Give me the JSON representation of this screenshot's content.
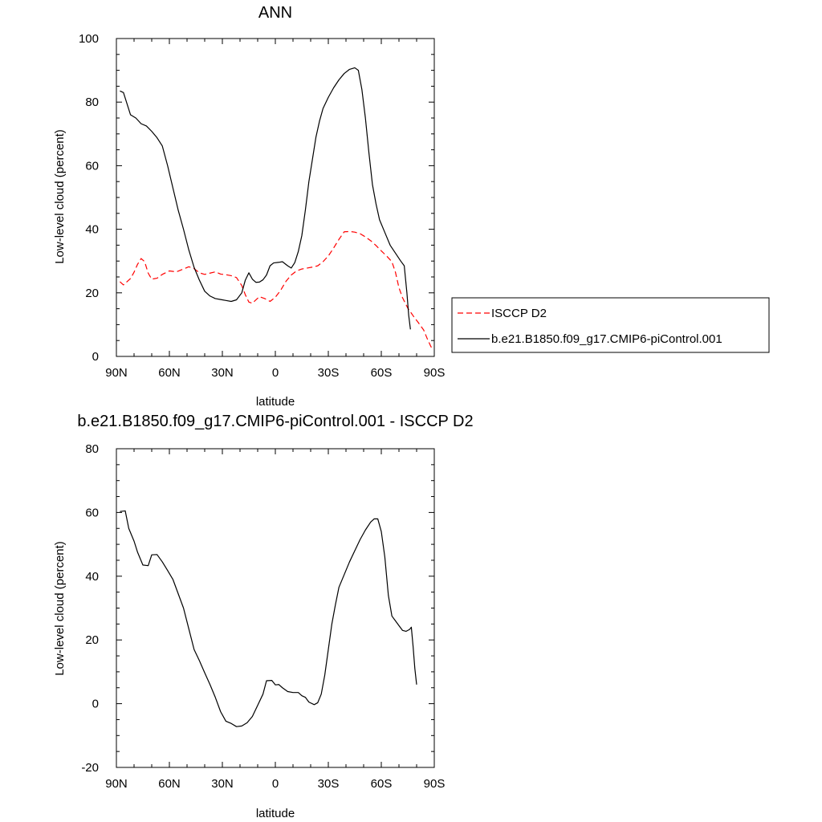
{
  "chart_data": [
    {
      "type": "line",
      "title": "ANN",
      "xlabel": "latitude",
      "ylabel": "Low-level cloud (percent)",
      "xlim": [
        90,
        -90
      ],
      "ylim": [
        0,
        100
      ],
      "xticks": [
        {
          "value": 90,
          "label": "90N"
        },
        {
          "value": 60,
          "label": "60N"
        },
        {
          "value": 30,
          "label": "30N"
        },
        {
          "value": 0,
          "label": "0"
        },
        {
          "value": -30,
          "label": "30S"
        },
        {
          "value": -60,
          "label": "60S"
        },
        {
          "value": -90,
          "label": "90S"
        }
      ],
      "yticks": [
        0,
        20,
        40,
        60,
        80,
        100
      ],
      "ytick_labels": [
        "0",
        "20",
        "40",
        "60",
        "80",
        "100"
      ],
      "grid": false,
      "legend": "right",
      "series": [
        {
          "name": "ISCCP D2",
          "color": "#ff0000",
          "dash": "dashed",
          "points": [
            [
              88,
              23.5
            ],
            [
              86,
              22.5
            ],
            [
              84,
              23.5
            ],
            [
              82,
              24.5
            ],
            [
              80,
              26.5
            ],
            [
              78,
              29
            ],
            [
              76,
              30.8
            ],
            [
              74,
              29.8
            ],
            [
              72,
              26.2
            ],
            [
              70,
              24.3
            ],
            [
              67,
              24.6
            ],
            [
              64,
              25.8
            ],
            [
              60,
              26.9
            ],
            [
              56,
              26.6
            ],
            [
              52,
              27.5
            ],
            [
              49,
              28.2
            ],
            [
              46,
              27.6
            ],
            [
              43,
              26.3
            ],
            [
              40,
              25.8
            ],
            [
              37,
              26.2
            ],
            [
              34,
              26.6
            ],
            [
              31,
              25.9
            ],
            [
              28,
              25.7
            ],
            [
              25,
              25.4
            ],
            [
              22,
              24.8
            ],
            [
              19,
              22.3
            ],
            [
              17,
              19.4
            ],
            [
              15,
              17.1
            ],
            [
              13,
              16.7
            ],
            [
              11,
              17.8
            ],
            [
              9,
              18.8
            ],
            [
              6,
              18.2
            ],
            [
              3,
              17.3
            ],
            [
              0,
              18.6
            ],
            [
              -3,
              20.8
            ],
            [
              -6,
              23.6
            ],
            [
              -9,
              25.6
            ],
            [
              -12,
              26.9
            ],
            [
              -15,
              27.5
            ],
            [
              -18,
              27.8
            ],
            [
              -21,
              28.1
            ],
            [
              -24,
              28.5
            ],
            [
              -27,
              29.8
            ],
            [
              -30,
              31.6
            ],
            [
              -33,
              34.1
            ],
            [
              -36,
              36.8
            ],
            [
              -39,
              39.2
            ],
            [
              -42,
              39.3
            ],
            [
              -45,
              39.1
            ],
            [
              -48,
              38.6
            ],
            [
              -51,
              37.6
            ],
            [
              -54,
              36.4
            ],
            [
              -57,
              34.9
            ],
            [
              -60,
              33.2
            ],
            [
              -63,
              31.6
            ],
            [
              -66,
              29.8
            ],
            [
              -68,
              26.5
            ],
            [
              -70,
              21.6
            ],
            [
              -72,
              18.5
            ],
            [
              -75,
              15.2
            ],
            [
              -78,
              12.8
            ],
            [
              -81,
              10.6
            ],
            [
              -84,
              8.3
            ],
            [
              -86,
              5.6
            ],
            [
              -88,
              3.2
            ],
            [
              -89,
              2.2
            ]
          ]
        },
        {
          "name": "b.e21.B1850.f09_g17.CMIP6-piControl.001",
          "color": "#000000",
          "dash": "solid",
          "points": [
            [
              88,
              83.5
            ],
            [
              86,
              83
            ],
            [
              84,
              79.5
            ],
            [
              82,
              76
            ],
            [
              79,
              75
            ],
            [
              76,
              73.2
            ],
            [
              73,
              72.5
            ],
            [
              70,
              70.8
            ],
            [
              67,
              68.8
            ],
            [
              64,
              66.2
            ],
            [
              61,
              60
            ],
            [
              58,
              53
            ],
            [
              55,
              46
            ],
            [
              52,
              40
            ],
            [
              49,
              33.5
            ],
            [
              46,
              28
            ],
            [
              43,
              24
            ],
            [
              40,
              20.5
            ],
            [
              37,
              19
            ],
            [
              34,
              18.2
            ],
            [
              31,
              17.9
            ],
            [
              28,
              17.6
            ],
            [
              25,
              17.3
            ],
            [
              22,
              17.8
            ],
            [
              19,
              20
            ],
            [
              17,
              24
            ],
            [
              15,
              26.3
            ],
            [
              13,
              24.3
            ],
            [
              11,
              23.3
            ],
            [
              9,
              23.4
            ],
            [
              7,
              24.1
            ],
            [
              5,
              25.6
            ],
            [
              3,
              28.5
            ],
            [
              1,
              29.4
            ],
            [
              -2,
              29.6
            ],
            [
              -4,
              29.8
            ],
            [
              -7,
              28.5
            ],
            [
              -9,
              27.8
            ],
            [
              -11,
              29.5
            ],
            [
              -13,
              33
            ],
            [
              -15,
              38
            ],
            [
              -17,
              46
            ],
            [
              -19,
              55
            ],
            [
              -21,
              62
            ],
            [
              -23,
              69
            ],
            [
              -25,
              74
            ],
            [
              -27,
              78
            ],
            [
              -30,
              81.5
            ],
            [
              -33,
              84.5
            ],
            [
              -36,
              87
            ],
            [
              -39,
              89
            ],
            [
              -42,
              90.3
            ],
            [
              -45,
              90.8
            ],
            [
              -47,
              90
            ],
            [
              -49,
              84
            ],
            [
              -51,
              75
            ],
            [
              -53,
              64
            ],
            [
              -55,
              54
            ],
            [
              -57,
              48
            ],
            [
              -59,
              43
            ],
            [
              -62,
              39
            ],
            [
              -65,
              35
            ],
            [
              -68,
              32.5
            ],
            [
              -71,
              30
            ],
            [
              -73,
              28.5
            ],
            [
              -74.5,
              20
            ],
            [
              -75.5,
              13
            ],
            [
              -76.5,
              8.5
            ]
          ]
        }
      ]
    },
    {
      "type": "line",
      "title": "b.e21.B1850.f09_g17.CMIP6-piControl.001 - ISCCP D2",
      "xlabel": "latitude",
      "ylabel": "Low-level cloud (percent)",
      "xlim": [
        90,
        -90
      ],
      "ylim": [
        -20,
        80
      ],
      "xticks": [
        {
          "value": 90,
          "label": "90N"
        },
        {
          "value": 60,
          "label": "60N"
        },
        {
          "value": 30,
          "label": "30N"
        },
        {
          "value": 0,
          "label": "0"
        },
        {
          "value": -30,
          "label": "30S"
        },
        {
          "value": -60,
          "label": "60S"
        },
        {
          "value": -90,
          "label": "90S"
        }
      ],
      "yticks": [
        -20,
        0,
        20,
        40,
        60,
        80
      ],
      "ytick_labels": [
        "-20",
        "0",
        "20",
        "40",
        "60",
        "80"
      ],
      "grid": false,
      "series": [
        {
          "color": "#000000",
          "dash": "solid",
          "points": [
            [
              88,
              60.3
            ],
            [
              85,
              60.5
            ],
            [
              83,
              55
            ],
            [
              80,
              51
            ],
            [
              78,
              47.5
            ],
            [
              75,
              43.5
            ],
            [
              72,
              43.3
            ],
            [
              70,
              46.7
            ],
            [
              67,
              46.8
            ],
            [
              64,
              44.5
            ],
            [
              61,
              41.8
            ],
            [
              58,
              39
            ],
            [
              55,
              34.5
            ],
            [
              52,
              30
            ],
            [
              49,
              23.5
            ],
            [
              46,
              17
            ],
            [
              43,
              13.5
            ],
            [
              40,
              9.7
            ],
            [
              37,
              6
            ],
            [
              34,
              2
            ],
            [
              31,
              -2.5
            ],
            [
              28,
              -5.5
            ],
            [
              25,
              -6.2
            ],
            [
              22,
              -7.2
            ],
            [
              19,
              -7
            ],
            [
              16,
              -6
            ],
            [
              13,
              -4
            ],
            [
              10,
              -0.5
            ],
            [
              7,
              3
            ],
            [
              5,
              7.2
            ],
            [
              2,
              7.3
            ],
            [
              0,
              5.9
            ],
            [
              -2,
              6
            ],
            [
              -4,
              5
            ],
            [
              -7,
              3.8
            ],
            [
              -10,
              3.5
            ],
            [
              -13,
              3.5
            ],
            [
              -15,
              2.5
            ],
            [
              -17,
              2
            ],
            [
              -19,
              0.5
            ],
            [
              -22,
              -0.3
            ],
            [
              -24,
              0.3
            ],
            [
              -26,
              3
            ],
            [
              -28,
              9
            ],
            [
              -30,
              17
            ],
            [
              -32,
              25
            ],
            [
              -34,
              31
            ],
            [
              -36,
              36.5
            ],
            [
              -39,
              40.5
            ],
            [
              -42,
              44.5
            ],
            [
              -45,
              48
            ],
            [
              -48,
              51.5
            ],
            [
              -51,
              54.5
            ],
            [
              -54,
              57
            ],
            [
              -56,
              58
            ],
            [
              -58,
              58
            ],
            [
              -60,
              54
            ],
            [
              -62,
              46
            ],
            [
              -64,
              34
            ],
            [
              -66,
              27.5
            ],
            [
              -68,
              26
            ],
            [
              -70,
              24.5
            ],
            [
              -72,
              23
            ],
            [
              -74,
              22.7
            ],
            [
              -76,
              23.3
            ],
            [
              -77,
              24
            ],
            [
              -78,
              18
            ],
            [
              -79,
              11
            ],
            [
              -80,
              6
            ]
          ]
        }
      ]
    }
  ]
}
